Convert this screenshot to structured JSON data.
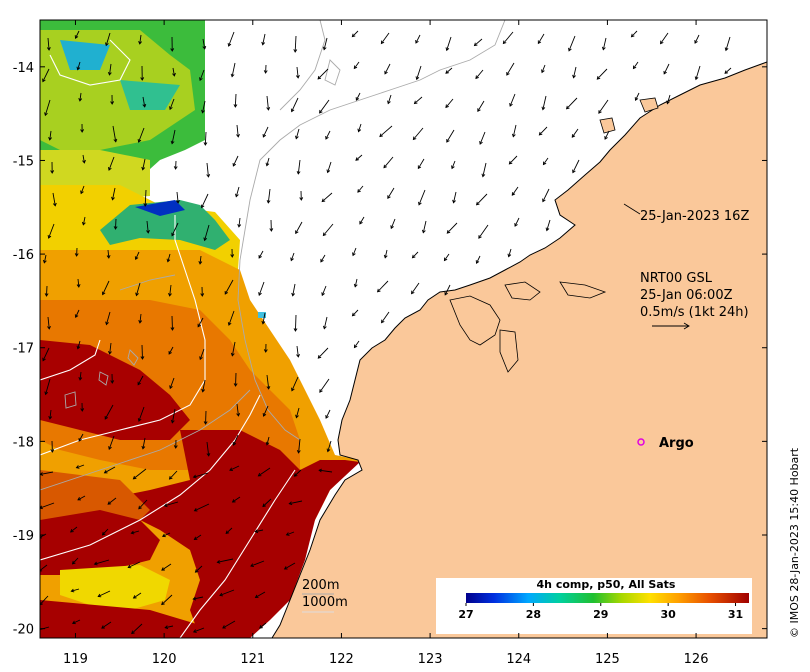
{
  "map": {
    "lon_range": [
      118.6,
      126.8
    ],
    "lat_range": [
      -20.1,
      -13.5
    ],
    "x_ticks": [
      "119",
      "120",
      "121",
      "122",
      "123",
      "124",
      "125",
      "126"
    ],
    "y_ticks": [
      "-14",
      "-15",
      "-16",
      "-17",
      "-18",
      "-19",
      "-20"
    ],
    "colors": {
      "land": "#fac89a",
      "no_data": "#ffffff",
      "coast": "#000000",
      "contour": "#aaaaaa",
      "warm": "#a60000",
      "argo": "#e000e0"
    }
  },
  "annotations": {
    "sat_pass": "25-Jan-2023 16Z",
    "current_product": "NRT00 GSL",
    "current_time": "25-Jan 06:00Z",
    "current_scale": "0.5m/s (1kt 24h)",
    "contour_200": "200m",
    "contour_1000": "1000m",
    "argo_label": "Argo"
  },
  "colorbar": {
    "title": "4h comp, p50, All Sats",
    "ticks": [
      "27",
      "28",
      "29",
      "30",
      "31"
    ],
    "range": [
      27,
      31.2
    ]
  },
  "credit": "© IMOS 28-Jan-2023 15:40 Hobart"
}
